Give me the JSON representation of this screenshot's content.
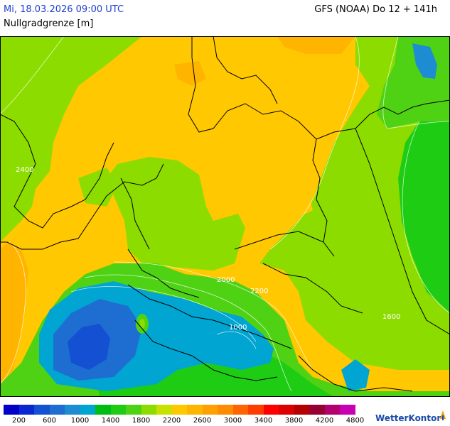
{
  "header": {
    "valid_time": "Mi, 18.03.2026 09:00 UTC",
    "parameter": "Nullgradgrenze [m]",
    "model_run": "GFS (NOAA) Do 12 + 141h"
  },
  "map": {
    "contour_labels": [
      {
        "id": "lbl-2000-alps",
        "text": "2000"
      },
      {
        "id": "lbl-2200-alps",
        "text": "2200"
      },
      {
        "id": "lbl-1000-alps",
        "text": "1000"
      },
      {
        "id": "lbl-1600-east",
        "text": "1600"
      },
      {
        "id": "lbl-2400-west",
        "text": "2400"
      }
    ]
  },
  "legend": {
    "colors": [
      "#0000c8",
      "#0a28d2",
      "#1450d2",
      "#1e6ed2",
      "#1e8cd2",
      "#00a5d2",
      "#00bc14",
      "#1ecc14",
      "#50d214",
      "#8cdc00",
      "#c8e100",
      "#ffc800",
      "#ffb400",
      "#ffa000",
      "#ff8c00",
      "#ff6400",
      "#ff3c00",
      "#ff0000",
      "#dc0000",
      "#b40000",
      "#960032",
      "#b4006e",
      "#c800b4"
    ],
    "labels": [
      "200",
      "600",
      "1000",
      "1400",
      "1800",
      "2200",
      "2600",
      "3000",
      "3400",
      "3800",
      "4200",
      "4800"
    ]
  },
  "brand": {
    "name": "WetterKontor"
  }
}
